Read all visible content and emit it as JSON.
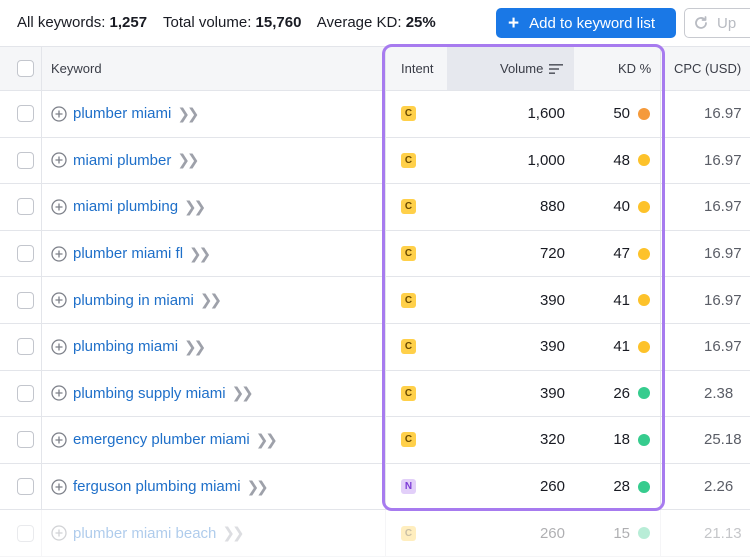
{
  "summary": {
    "all_keywords_label": "All keywords:",
    "all_keywords_value": "1,257",
    "total_volume_label": "Total volume:",
    "total_volume_value": "15,760",
    "avg_kd_label": "Average KD:",
    "avg_kd_value": "25%"
  },
  "toolbar": {
    "add_label": "Add to keyword list",
    "update_label": "Up"
  },
  "columns": {
    "keyword": "Keyword",
    "intent": "Intent",
    "volume": "Volume",
    "kd": "KD %",
    "cpc": "CPC (USD)"
  },
  "intent_colors": {
    "C": "#ffd04a",
    "N": "#e2cff9"
  },
  "kd_colors": {
    "orange": "#f59a3b",
    "yellow": "#fdc22a",
    "green": "#36cc8e"
  },
  "rows": [
    {
      "keyword": "plumber miami",
      "intent": "C",
      "volume": "1,600",
      "kd": "50",
      "kd_color": "orange",
      "cpc": "16.97"
    },
    {
      "keyword": "miami plumber",
      "intent": "C",
      "volume": "1,000",
      "kd": "48",
      "kd_color": "yellow",
      "cpc": "16.97"
    },
    {
      "keyword": "miami plumbing",
      "intent": "C",
      "volume": "880",
      "kd": "40",
      "kd_color": "yellow",
      "cpc": "16.97"
    },
    {
      "keyword": "plumber miami fl",
      "intent": "C",
      "volume": "720",
      "kd": "47",
      "kd_color": "yellow",
      "cpc": "16.97"
    },
    {
      "keyword": "plumbing in miami",
      "intent": "C",
      "volume": "390",
      "kd": "41",
      "kd_color": "yellow",
      "cpc": "16.97"
    },
    {
      "keyword": "plumbing miami",
      "intent": "C",
      "volume": "390",
      "kd": "41",
      "kd_color": "yellow",
      "cpc": "16.97"
    },
    {
      "keyword": "plumbing supply miami",
      "intent": "C",
      "volume": "390",
      "kd": "26",
      "kd_color": "green",
      "cpc": "2.38"
    },
    {
      "keyword": "emergency plumber miami",
      "intent": "C",
      "volume": "320",
      "kd": "18",
      "kd_color": "green",
      "cpc": "25.18"
    },
    {
      "keyword": "ferguson plumbing miami",
      "intent": "N",
      "volume": "260",
      "kd": "28",
      "kd_color": "green",
      "cpc": "2.26"
    },
    {
      "keyword": "plumber miami beach",
      "intent": "C",
      "volume": "260",
      "kd": "15",
      "kd_color": "green",
      "cpc": "21.13"
    }
  ]
}
